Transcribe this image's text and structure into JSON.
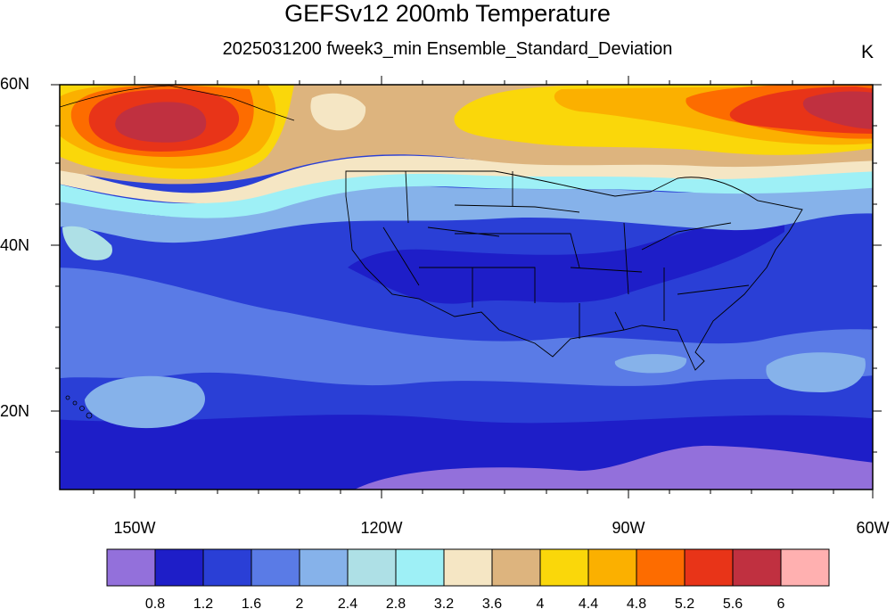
{
  "title": "GEFSv12 200mb Temperature",
  "subtitle": "2025031200 fweek3_min Ensemble_Standard_Deviation",
  "units": "K",
  "axes": {
    "lat_labels": [
      "60N",
      "40N",
      "20N"
    ],
    "lon_labels": [
      "150W",
      "120W",
      "90W",
      "60W"
    ]
  },
  "colorbar": {
    "colors": [
      "#9370db",
      "#1e1ec8",
      "#2a3fd6",
      "#5a7be6",
      "#86b2ea",
      "#aee0e6",
      "#9ef0f6",
      "#f5e6c4",
      "#ddb47e",
      "#fad70a",
      "#fbb000",
      "#fd6c00",
      "#e83418",
      "#c03040",
      "#ffb0b0"
    ],
    "labels": [
      "0.8",
      "1.2",
      "1.6",
      "2",
      "2.4",
      "2.8",
      "3.2",
      "3.6",
      "4",
      "4.4",
      "4.8",
      "5.2",
      "5.6",
      "6"
    ]
  }
}
